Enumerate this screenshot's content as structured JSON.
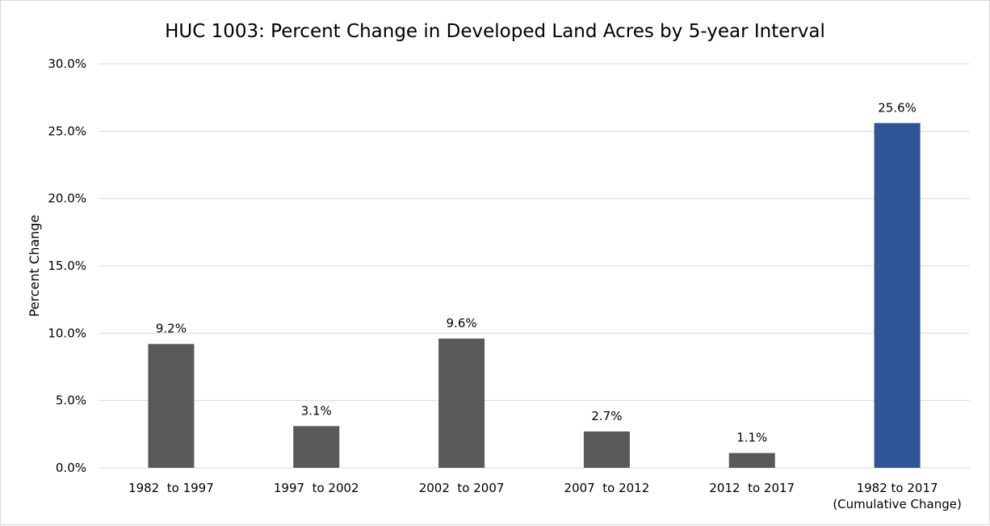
{
  "chart_data": {
    "type": "bar",
    "title": "HUC 1003: Percent Change in Developed Land Acres by 5-year Interval",
    "xlabel": "",
    "ylabel": "Percent Change",
    "ylim": [
      0,
      30
    ],
    "yticks": [
      "0.0%",
      "5.0%",
      "10.0%",
      "15.0%",
      "20.0%",
      "25.0%",
      "30.0%"
    ],
    "grid": true,
    "legend": "none",
    "categories": [
      [
        "1982  to 1997"
      ],
      [
        "1997  to 2002"
      ],
      [
        "2002  to 2007"
      ],
      [
        "2007  to 2012"
      ],
      [
        "2012  to 2017"
      ],
      [
        "1982 to 2017",
        "(Cumulative Change)"
      ]
    ],
    "values": [
      9.2,
      3.1,
      9.6,
      2.7,
      1.1,
      25.6
    ],
    "value_labels": [
      "9.2%",
      "3.1%",
      "9.6%",
      "2.7%",
      "1.1%",
      "25.6%"
    ],
    "colors": [
      "#595959",
      "#595959",
      "#595959",
      "#595959",
      "#595959",
      "#2f5597"
    ],
    "gridline_color": "#d9d9d9"
  }
}
